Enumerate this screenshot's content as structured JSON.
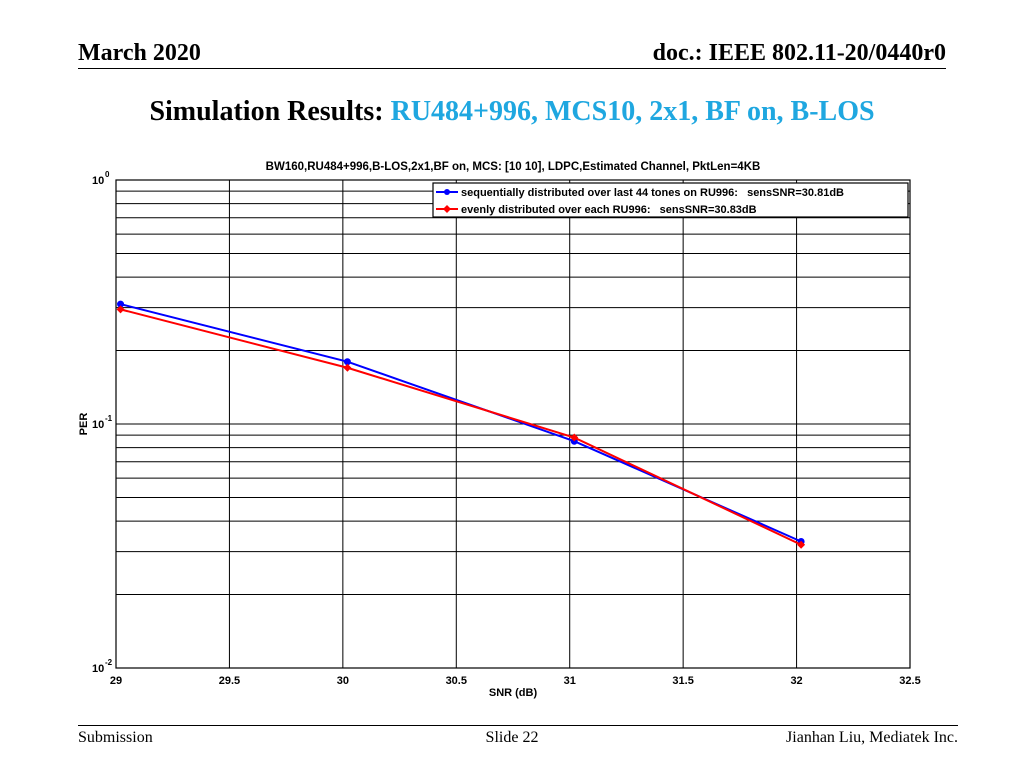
{
  "header": {
    "left": "March 2020",
    "right": "doc.: IEEE 802.11-20/0440r0"
  },
  "slide": {
    "title_black": "Simulation Results:",
    "title_blue": "RU484+996, MCS10, 2x1, BF on, B-LOS"
  },
  "footer": {
    "left": "Submission",
    "center": "Slide 22",
    "right": "Jianhan Liu, Mediatek Inc."
  },
  "colors": {
    "title_accent": "#1fa7e0",
    "series_blue": "#0000ff",
    "series_red": "#ff0000"
  },
  "chart_data": {
    "type": "line",
    "title": "BW160,RU484+996,B-LOS,2x1,BF on, MCS: [10  10], LDPC,Estimated Channel, PktLen=4KB",
    "xlabel": "SNR (dB)",
    "ylabel": "PER",
    "xlim": [
      29,
      32.5
    ],
    "ylim": [
      0.01,
      1
    ],
    "yscale": "log",
    "grid": true,
    "legend_position": "top-right",
    "x_ticks": [
      "29",
      "29.5",
      "30",
      "30.5",
      "31",
      "31.5",
      "32",
      "32.5"
    ],
    "y_ticks": [
      {
        "base": "10",
        "exp": "0",
        "value": 1
      },
      {
        "base": "10",
        "exp": "-1",
        "value": 0.1
      },
      {
        "base": "10",
        "exp": "-2",
        "value": 0.01
      }
    ],
    "series": [
      {
        "name": "sequentially distributed over last 44 tones on RU996:   sensSNR=30.81dB",
        "color": "#0000ff",
        "marker": "circle",
        "x": [
          29.02,
          30.02,
          31.02,
          32.02
        ],
        "y": [
          0.31,
          0.18,
          0.085,
          0.033
        ]
      },
      {
        "name": "evenly distributed over each RU996:   sensSNR=30.83dB",
        "color": "#ff0000",
        "marker": "diamond",
        "x": [
          29.02,
          30.02,
          31.02,
          32.02
        ],
        "y": [
          0.295,
          0.17,
          0.088,
          0.032
        ]
      }
    ]
  }
}
